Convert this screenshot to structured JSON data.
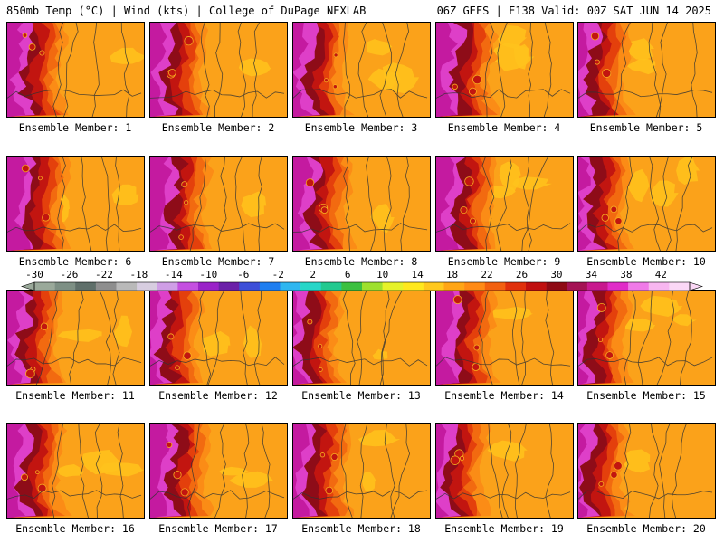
{
  "header": {
    "left_title": "850mb Temp (°C) | Wind (kts) | College of DuPage NEXLAB",
    "right_title": "06Z GEFS | F138 Valid: 00Z SAT JUN 14 2025"
  },
  "panels": [
    {
      "label": "Ensemble Member: 1"
    },
    {
      "label": "Ensemble Member: 2"
    },
    {
      "label": "Ensemble Member: 3"
    },
    {
      "label": "Ensemble Member: 4"
    },
    {
      "label": "Ensemble Member: 5"
    },
    {
      "label": "Ensemble Member: 6"
    },
    {
      "label": "Ensemble Member: 7"
    },
    {
      "label": "Ensemble Member: 8"
    },
    {
      "label": "Ensemble Member: 9"
    },
    {
      "label": "Ensemble Member: 10"
    },
    {
      "label": "Ensemble Member: 11"
    },
    {
      "label": "Ensemble Member: 12"
    },
    {
      "label": "Ensemble Member: 13"
    },
    {
      "label": "Ensemble Member: 14"
    },
    {
      "label": "Ensemble Member: 15"
    },
    {
      "label": "Ensemble Member: 16"
    },
    {
      "label": "Ensemble Member: 17"
    },
    {
      "label": "Ensemble Member: 18"
    },
    {
      "label": "Ensemble Member: 19"
    },
    {
      "label": "Ensemble Member: 20"
    }
  ],
  "colorbar": {
    "ticks": [
      "-30",
      "-26",
      "-22",
      "-18",
      "-14",
      "-10",
      "-6",
      "-2",
      "2",
      "6",
      "10",
      "14",
      "18",
      "22",
      "26",
      "30",
      "34",
      "38",
      "42"
    ],
    "colors": [
      "#9aa99a",
      "#7d8f84",
      "#5f6f6a",
      "#8e8e8e",
      "#b9b9b9",
      "#d7cde0",
      "#cf9ee6",
      "#c44fe0",
      "#9a23c8",
      "#6b20a8",
      "#3d4fd8",
      "#1f7ef0",
      "#2fb6f0",
      "#27d6c8",
      "#23c98f",
      "#3cc040",
      "#9ee02e",
      "#e6f22a",
      "#ffe81e",
      "#ffc81e",
      "#ffa516",
      "#ff8a16",
      "#f26010",
      "#e0300c",
      "#c01010",
      "#8e0a14",
      "#a41254",
      "#c8188e",
      "#e02cc8",
      "#f07ae8",
      "#f8b6f0",
      "#fbd8f6"
    ]
  },
  "map_colors": {
    "hot_core": "#c41aa0",
    "hot_magenta": "#de3fc8",
    "very_hot": "#8e0c18",
    "hot_red": "#c21510",
    "warm_red": "#e4400c",
    "warm": "#f26a10",
    "mild": "#fb8c16",
    "base": "#fba21a",
    "cool_yellow": "#ffc31c"
  }
}
